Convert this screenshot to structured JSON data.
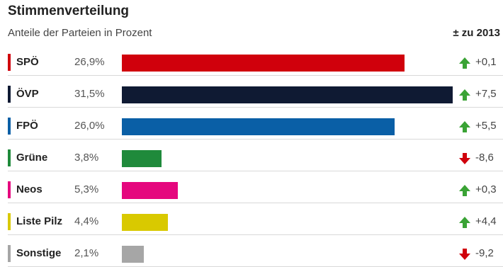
{
  "chart_data": {
    "type": "bar",
    "title": "Stimmenverteilung",
    "subtitle": "Anteile der Parteien in Prozent",
    "delta_header": "± zu 2013",
    "categories": [
      "SPÖ",
      "ÖVP",
      "FPÖ",
      "Grüne",
      "Neos",
      "Liste Pilz",
      "Sonstige"
    ],
    "values": [
      26.9,
      31.5,
      26.0,
      3.8,
      5.3,
      4.4,
      2.1
    ],
    "value_labels": [
      "26,9%",
      "31,5%",
      "26,0%",
      "3,8%",
      "5,3%",
      "4,4%",
      "2,1%"
    ],
    "changes": [
      0.1,
      7.5,
      5.5,
      -8.6,
      0.3,
      4.4,
      -9.2
    ],
    "change_labels": [
      "+0,1",
      "+7,5",
      "+5,5",
      "-8,6",
      "+0,3",
      "+4,4",
      "-9,2"
    ],
    "colors": [
      "#d0000c",
      "#0f1a33",
      "#0a5fa6",
      "#1f8a3b",
      "#e5077e",
      "#d9c900",
      "#a6a6a6"
    ],
    "arrow_up_color": "#3aa335",
    "arrow_down_color": "#d0000c",
    "xlim": [
      0,
      31.5
    ]
  }
}
